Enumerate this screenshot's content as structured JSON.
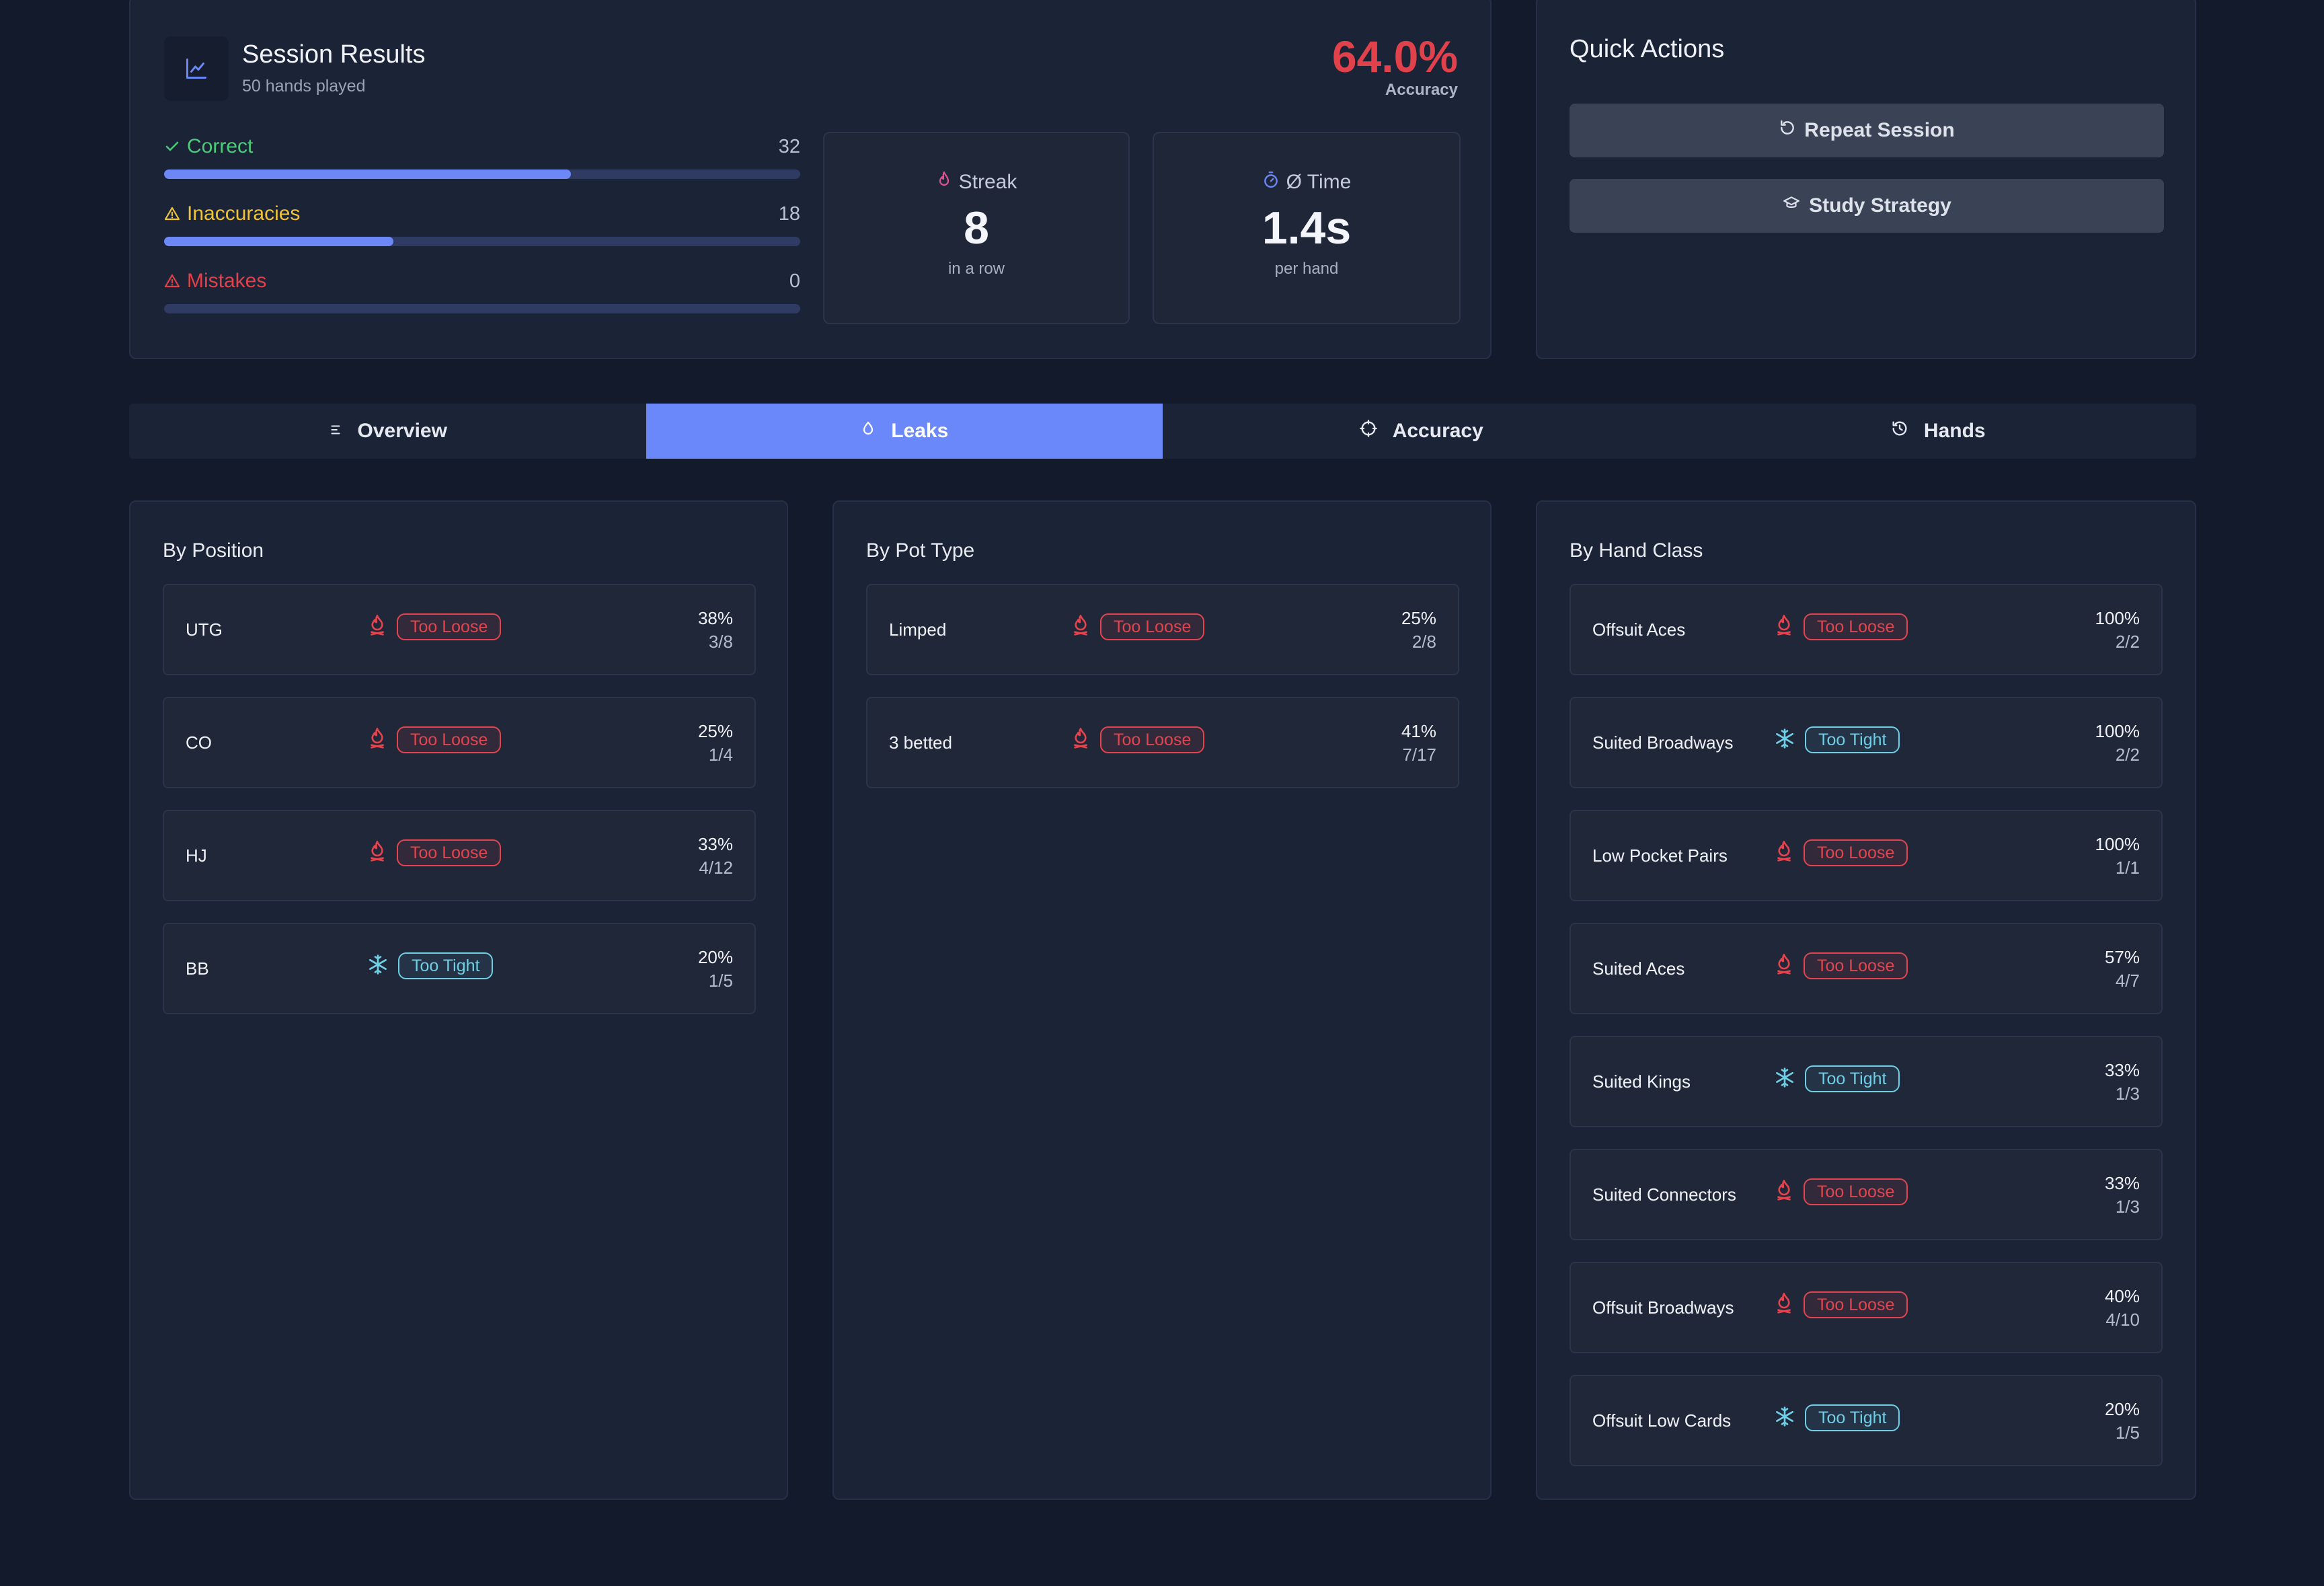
{
  "session": {
    "title": "Session Results",
    "subtitle": "50 hands played",
    "accuracy_value": "64.0%",
    "accuracy_label": "Accuracy",
    "stats": [
      {
        "label": "Correct",
        "value": "32",
        "fraction": 0.64,
        "color": "#4ccb7a"
      },
      {
        "label": "Inaccuracies",
        "value": "18",
        "fraction": 0.36,
        "color": "#f0c43a"
      },
      {
        "label": "Mistakes",
        "value": "0",
        "fraction": 0.0,
        "color": "#e0414a"
      }
    ],
    "streak": {
      "label": "Streak",
      "value": "8",
      "sub": "in a row"
    },
    "time": {
      "label": "Ø Time",
      "value": "1.4s",
      "sub": "per hand"
    }
  },
  "quick_actions": {
    "title": "Quick Actions",
    "repeat_label": "Repeat Session",
    "study_label": "Study Strategy"
  },
  "tabs": [
    {
      "label": "Overview",
      "icon": "list-icon"
    },
    {
      "label": "Leaks",
      "icon": "droplet-icon",
      "active": true
    },
    {
      "label": "Accuracy",
      "icon": "crosshair-icon"
    },
    {
      "label": "Hands",
      "icon": "history-icon"
    }
  ],
  "panels": {
    "position": {
      "title": "By Position",
      "rows": [
        {
          "name": "UTG",
          "tag": "Too Loose",
          "kind": "loose",
          "pct": "38%",
          "frac": "3/8"
        },
        {
          "name": "CO",
          "tag": "Too Loose",
          "kind": "loose",
          "pct": "25%",
          "frac": "1/4"
        },
        {
          "name": "HJ",
          "tag": "Too Loose",
          "kind": "loose",
          "pct": "33%",
          "frac": "4/12"
        },
        {
          "name": "BB",
          "tag": "Too Tight",
          "kind": "tight",
          "pct": "20%",
          "frac": "1/5"
        }
      ]
    },
    "pot_type": {
      "title": "By Pot Type",
      "rows": [
        {
          "name": "Limped",
          "tag": "Too Loose",
          "kind": "loose",
          "pct": "25%",
          "frac": "2/8"
        },
        {
          "name": "3 betted",
          "tag": "Too Loose",
          "kind": "loose",
          "pct": "41%",
          "frac": "7/17"
        }
      ]
    },
    "hand_class": {
      "title": "By Hand Class",
      "rows": [
        {
          "name": "Offsuit Aces",
          "tag": "Too Loose",
          "kind": "loose",
          "pct": "100%",
          "frac": "2/2"
        },
        {
          "name": "Suited Broadways",
          "tag": "Too Tight",
          "kind": "tight",
          "pct": "100%",
          "frac": "2/2"
        },
        {
          "name": "Low Pocket Pairs",
          "tag": "Too Loose",
          "kind": "loose",
          "pct": "100%",
          "frac": "1/1"
        },
        {
          "name": "Suited Aces",
          "tag": "Too Loose",
          "kind": "loose",
          "pct": "57%",
          "frac": "4/7"
        },
        {
          "name": "Suited Kings",
          "tag": "Too Tight",
          "kind": "tight",
          "pct": "33%",
          "frac": "1/3"
        },
        {
          "name": "Suited Connectors",
          "tag": "Too Loose",
          "kind": "loose",
          "pct": "33%",
          "frac": "1/3"
        },
        {
          "name": "Offsuit Broadways",
          "tag": "Too Loose",
          "kind": "loose",
          "pct": "40%",
          "frac": "4/10"
        },
        {
          "name": "Offsuit Low Cards",
          "tag": "Too Tight",
          "kind": "tight",
          "pct": "20%",
          "frac": "1/5"
        }
      ]
    }
  }
}
